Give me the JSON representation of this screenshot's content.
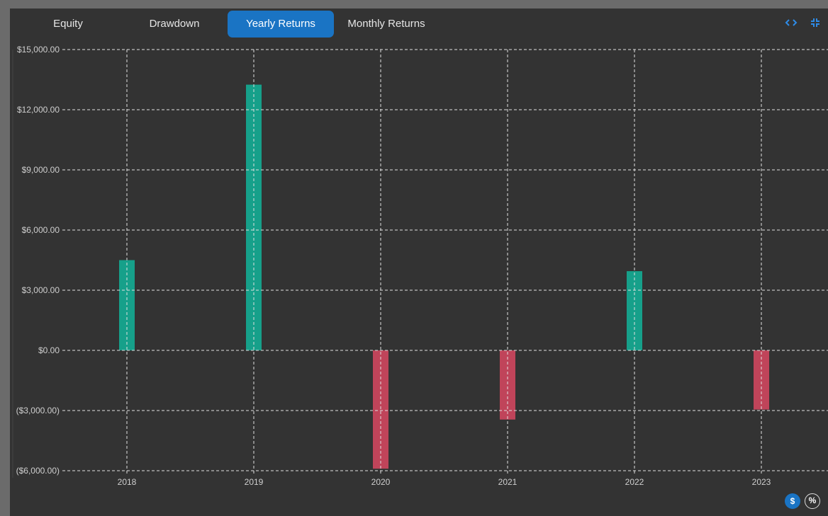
{
  "tabs": [
    {
      "label": "Equity",
      "active": false
    },
    {
      "label": "Drawdown",
      "active": false
    },
    {
      "label": "Yearly Returns",
      "active": true
    },
    {
      "label": "Monthly Returns",
      "active": false
    }
  ],
  "icons": {
    "code": "code-icon",
    "collapse": "collapse-icon",
    "dollar": "dollar-icon",
    "percent": "percent-icon"
  },
  "buttons": {
    "dollar_label": "$",
    "percent_label": "%"
  },
  "colors": {
    "positive": "#16a08a",
    "negative": "#c0445a",
    "accent": "#1a74c4",
    "grid": "#e0e0e0",
    "axis_text": "#cfcfcf"
  },
  "chart_data": {
    "type": "bar",
    "categories": [
      "2018",
      "2019",
      "2020",
      "2021",
      "2022",
      "2023"
    ],
    "values": [
      4500,
      13250,
      -5900,
      -3450,
      3950,
      -2950
    ],
    "ylim": [
      -6000,
      15000
    ],
    "yticks": [
      15000,
      12000,
      9000,
      6000,
      3000,
      0,
      -3000,
      -6000
    ],
    "ytick_labels": [
      "$15,000.00",
      "$12,000.00",
      "$9,000.00",
      "$6,000.00",
      "$3,000.00",
      "$0.00",
      "($3,000.00)",
      "($6,000.00)"
    ],
    "grid": true,
    "grid_style": "dashed",
    "title": "",
    "xlabel": "",
    "ylabel": ""
  }
}
